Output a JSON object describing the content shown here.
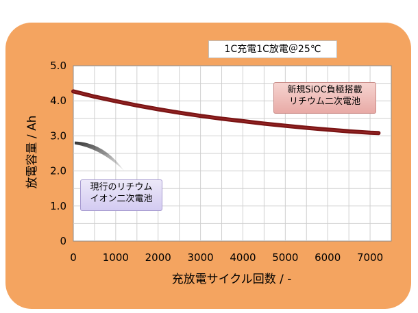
{
  "chart_data": {
    "type": "line",
    "title": "1C充電1C放電＠25℃",
    "xlabel": "充放電サイクル回数 / -",
    "ylabel": "放電容量 / Ah",
    "xlim": [
      0,
      7500
    ],
    "ylim": [
      0,
      5.0
    ],
    "xticks": [
      0,
      1000,
      2000,
      3000,
      4000,
      5000,
      6000,
      7000
    ],
    "xtick_labels": [
      "0",
      "1000",
      "2000",
      "3000",
      "4000",
      "5000",
      "6000",
      "7000"
    ],
    "yticks": [
      0,
      1.0,
      2.0,
      3.0,
      4.0,
      5.0
    ],
    "ytick_labels": [
      "0",
      "1.0",
      "2.0",
      "3.0",
      "4.0",
      "5.0"
    ],
    "grid": true,
    "series": [
      {
        "name": "新規SiOC負極搭載リチウム二次電池",
        "x": [
          0,
          500,
          1000,
          1500,
          2000,
          2500,
          3000,
          3500,
          4000,
          4500,
          5000,
          5500,
          6000,
          6500,
          7000,
          7200
        ],
        "y": [
          4.27,
          4.12,
          3.99,
          3.87,
          3.76,
          3.66,
          3.57,
          3.49,
          3.42,
          3.35,
          3.29,
          3.23,
          3.18,
          3.13,
          3.09,
          3.08
        ]
      },
      {
        "name": "現行のリチウムイオン二次電池",
        "x": [
          0,
          1200
        ],
        "y": [
          2.8,
          2.0
        ],
        "note_display": "fading-arrow"
      }
    ],
    "annotations": {
      "new_battery": [
        "新規SiOC負極搭載",
        "リチウム二次電池"
      ],
      "current_battery": [
        "現行のリチウム",
        "イオン二次電池"
      ]
    },
    "colors": {
      "background_panel": "#f4a460",
      "plot_area": "#ffffff",
      "gridline": "#cfcfcf",
      "new_line": "#7a1414",
      "current_arrow": "#2a2a2a"
    }
  }
}
